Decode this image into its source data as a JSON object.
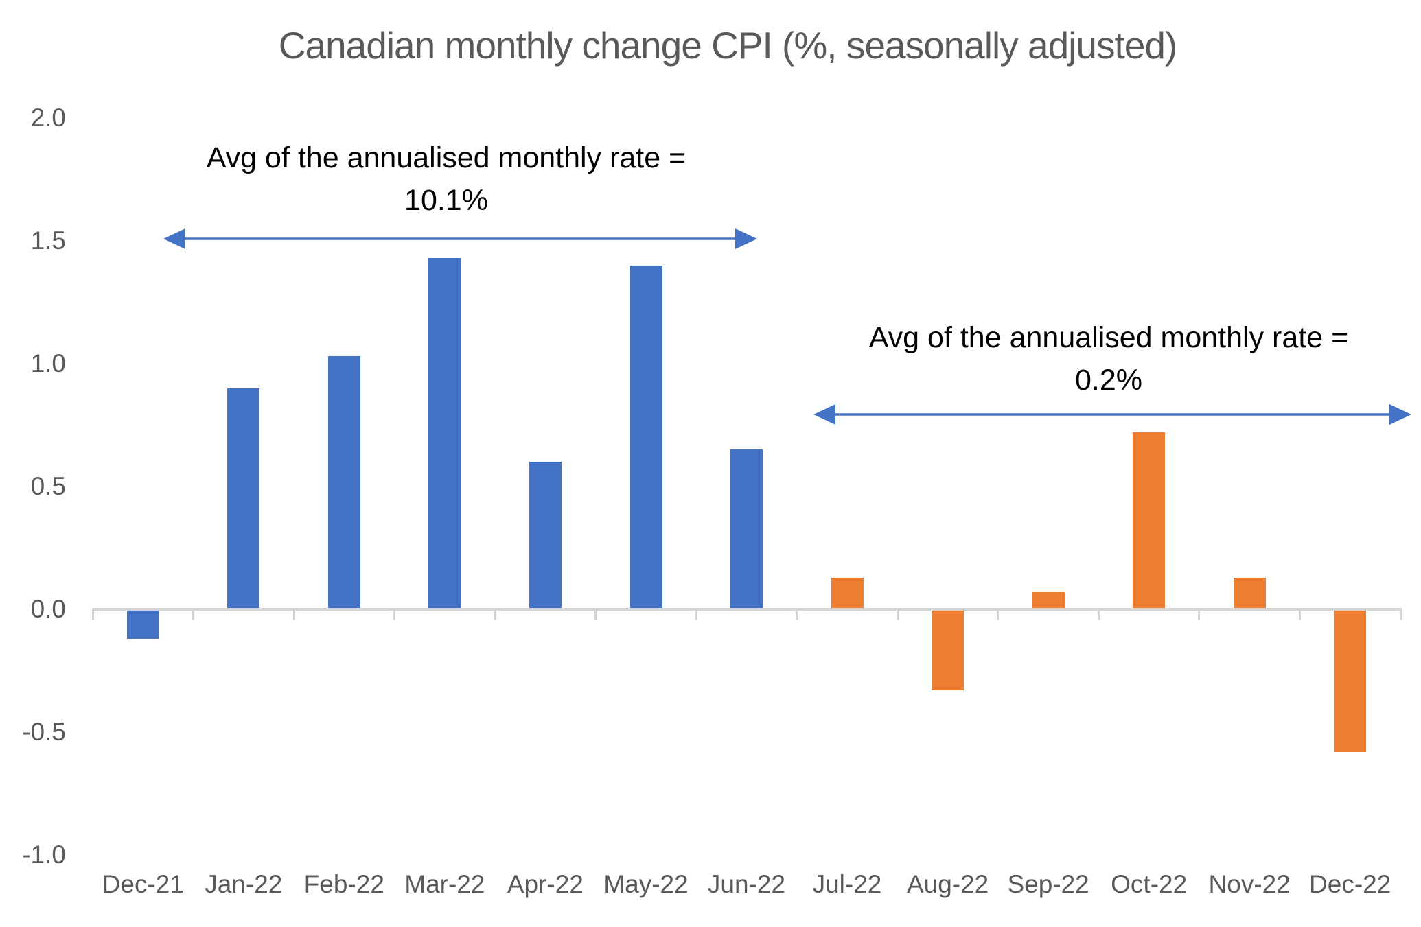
{
  "colors": {
    "blue": "#4472C4",
    "orange": "#ED7D31",
    "axis": "#D4D4D4",
    "label": "#595959",
    "title": "#595959",
    "annotation": "#000000",
    "arrow": "#4472C4",
    "background": "#FFFFFF"
  },
  "chart_data": {
    "type": "bar",
    "title": "Canadian monthly change CPI (%, seasonally adjusted)",
    "categories": [
      "Dec-21",
      "Jan-22",
      "Feb-22",
      "Mar-22",
      "Apr-22",
      "May-22",
      "Jun-22",
      "Jul-22",
      "Aug-22",
      "Sep-22",
      "Oct-22",
      "Nov-22",
      "Dec-22"
    ],
    "values": [
      -0.12,
      0.9,
      1.03,
      1.43,
      0.6,
      1.4,
      0.65,
      0.13,
      -0.33,
      0.07,
      0.72,
      0.13,
      -0.58
    ],
    "point_colors": [
      "#4472C4",
      "#4472C4",
      "#4472C4",
      "#4472C4",
      "#4472C4",
      "#4472C4",
      "#4472C4",
      "#ED7D31",
      "#ED7D31",
      "#ED7D31",
      "#ED7D31",
      "#ED7D31",
      "#ED7D31"
    ],
    "xlabel": "",
    "ylabel": "",
    "ylim": [
      -1.0,
      2.0
    ],
    "yticks": [
      "2.0",
      "1.5",
      "1.0",
      "0.5",
      "0.0",
      "-0.5",
      "-1.0"
    ],
    "grid": false,
    "legend": false,
    "annotations": [
      {
        "line1": "Avg of the annualised monthly rate =",
        "line2": "10.1%",
        "arrow_span": [
          "Dec-21",
          "Jun-22"
        ],
        "arrow_y_value": 1.5
      },
      {
        "line1": "Avg of the annualised monthly rate =",
        "line2": "0.2%",
        "arrow_span": [
          "Jul-22",
          "Dec-22"
        ],
        "arrow_y_value": 0.8
      }
    ]
  }
}
